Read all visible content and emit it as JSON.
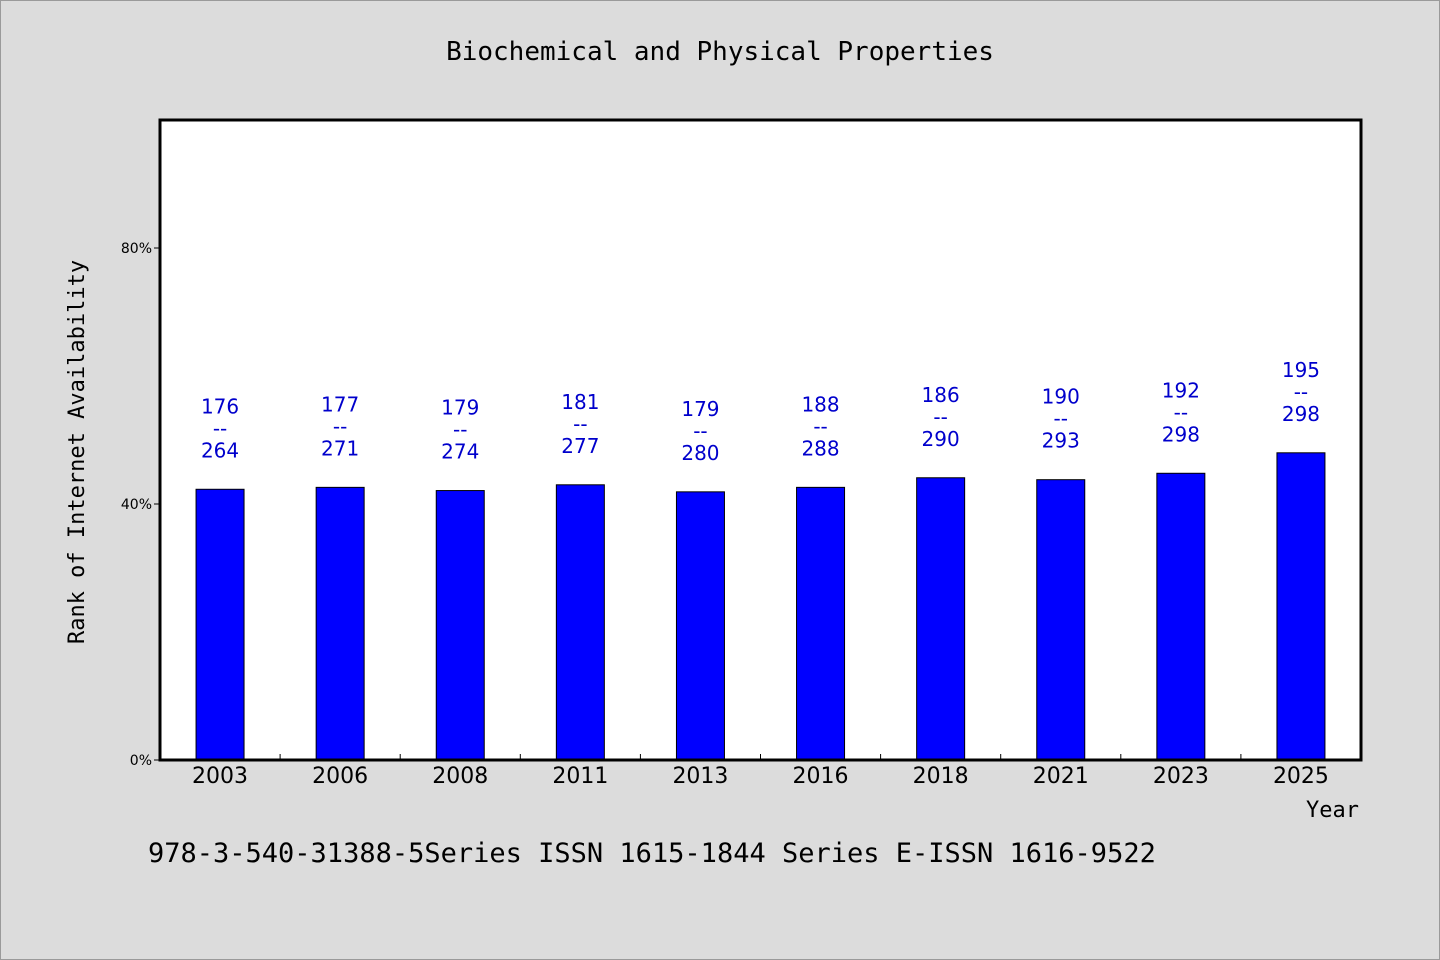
{
  "chart_data": {
    "type": "bar",
    "title": "Biochemical and Physical Properties",
    "xlabel": "Year",
    "ylabel": "Rank of Internet Availability",
    "categories": [
      "2003",
      "2006",
      "2008",
      "2011",
      "2013",
      "2016",
      "2018",
      "2021",
      "2023",
      "2025"
    ],
    "values": [
      42.3,
      42.6,
      42.1,
      43.0,
      41.9,
      42.6,
      44.1,
      43.8,
      44.8,
      48.0
    ],
    "value_unit": "%",
    "data_labels": [
      [
        "176",
        "--",
        "264"
      ],
      [
        "177",
        "--",
        "271"
      ],
      [
        "179",
        "--",
        "274"
      ],
      [
        "181",
        "--",
        "277"
      ],
      [
        "179",
        "--",
        "280"
      ],
      [
        "188",
        "--",
        "288"
      ],
      [
        "186",
        "--",
        "290"
      ],
      [
        "190",
        "--",
        "293"
      ],
      [
        "192",
        "--",
        "298"
      ],
      [
        "195",
        "--",
        "298"
      ]
    ],
    "yticks": [
      0,
      40,
      80
    ],
    "ytick_labels": [
      "0%",
      "40%",
      "80%"
    ],
    "ylim": [
      0,
      100
    ],
    "grid": false,
    "legend": "none",
    "colors": {
      "bar": "#0000ff",
      "data_label": "#0000cc",
      "plot_background": "#ffffff",
      "page_background": "#dcdcdc"
    }
  },
  "footer": {
    "text": "978-3-540-31388-5Series ISSN 1615-1844 Series E-ISSN 1616-9522"
  }
}
